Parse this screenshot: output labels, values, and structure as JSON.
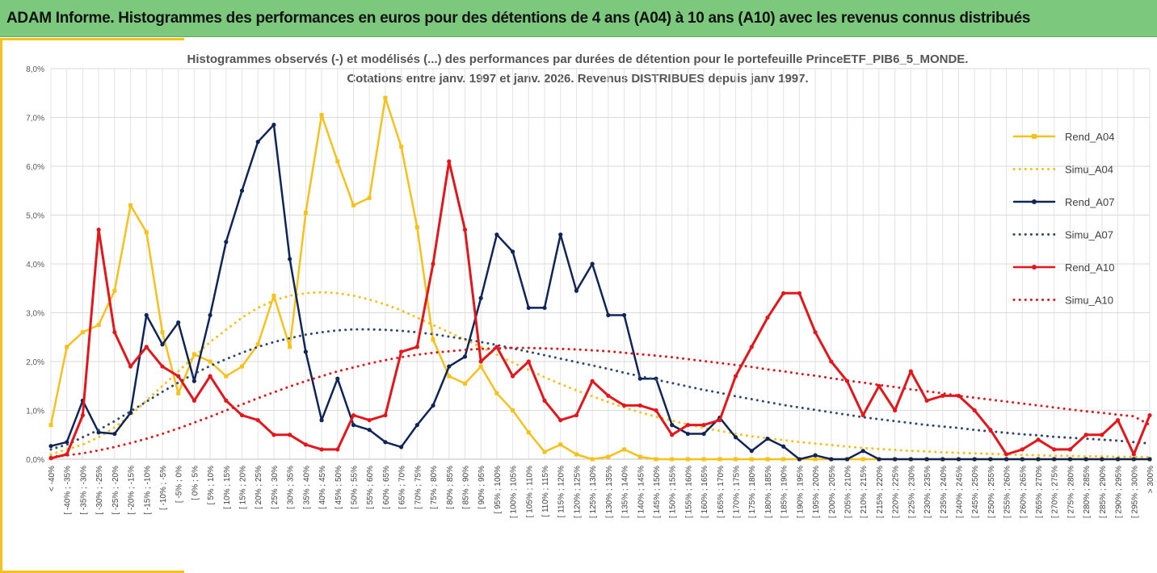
{
  "banner": {
    "title": "ADAM Informe. Histogrammes des performances en euros pour des détentions de 4 ans (A04) à 10 ans (A10) avec les revenus connus distribués"
  },
  "chart_data": {
    "type": "line",
    "title_line1": "Histogrammes observés (-) et modélisés (...) des performances par durées de détention pour  le portefeuille PrinceETF_PIB6_5_MONDE.",
    "title_line2": "Cotations  entre janv. 1997 et janv. 2026. Revenus DISTRIBUES depuis janv 1997.",
    "ylim": [
      0,
      8
    ],
    "y_ticks": [
      "0,0%",
      "1,0%",
      "2,0%",
      "3,0%",
      "4,0%",
      "5,0%",
      "6,0%",
      "7,0%",
      "8,0%"
    ],
    "grid": true,
    "legend_position": "right",
    "categories": [
      "< -40%",
      "[ -40% ; -35%",
      "[ -35% ; -30%",
      "[ -30% ; -25%",
      "[ -25% ; -20%",
      "[ -20% ; -15%",
      "[ -15% ; -10%",
      "[ -10% ; -5%",
      "[ -5% ; 0%",
      "[ 0% ; 5%",
      "[ 5% ; 10%",
      "[ 10% ; 15%",
      "[ 15% ; 20%",
      "[ 20% ; 25%",
      "[ 25% ; 30%",
      "[ 30% ; 35%",
      "[ 35% ; 40%",
      "[ 40% ; 45%",
      "[ 45% ; 50%",
      "[ 50% ; 55%",
      "[ 55% ; 60%",
      "[ 60% ; 65%",
      "[ 65% ; 70%",
      "[ 70% ; 75%",
      "[ 75% ; 80%",
      "[ 80% ; 85%",
      "[ 85% ; 90%",
      "[ 90% ; 95%",
      "[ 95% ; 100%",
      "[ 100% ; 105%",
      "[ 105% ; 110%",
      "[ 110% ; 115%",
      "[ 115% ; 120%",
      "[ 120% ; 125%",
      "[ 125% ; 130%",
      "[ 130% ; 135%",
      "[ 135% ; 140%",
      "[ 140% ; 145%",
      "[ 145% ; 150%",
      "[ 150% ; 155%",
      "[ 155% ; 160%",
      "[ 160% ; 165%",
      "[ 165% ; 170%",
      "[ 170% ; 175%",
      "[ 175% ; 180%",
      "[ 180% ; 185%",
      "[ 185% ; 190%",
      "[ 190% ; 195%",
      "[ 195% ; 200%",
      "[ 200% ; 205%",
      "[ 205% ; 210%",
      "[ 210% ; 215%",
      "[ 215% ; 220%",
      "[ 220% ; 225%",
      "[ 225% ; 230%",
      "[ 230% ; 235%",
      "[ 235% ; 240%",
      "[ 240% ; 245%",
      "[ 245% ; 250%",
      "[ 250% ; 255%",
      "[ 255% ; 260%",
      "[ 260% ; 265%",
      "[ 265% ; 270%",
      "[ 270% ; 275%",
      "[ 275% ; 280%",
      "[ 280% ; 285%",
      "[ 285% ; 290%",
      "[ 290% ; 295%",
      "[ 295% ; 300%",
      "> 300%"
    ],
    "series": [
      {
        "name": "Rend_A04",
        "style": "solid",
        "marker": "square",
        "color": "#f5c11a",
        "values": [
          0.7,
          2.3,
          2.6,
          2.75,
          3.45,
          5.2,
          4.65,
          2.6,
          1.35,
          2.15,
          2.0,
          1.7,
          1.9,
          2.35,
          3.35,
          2.3,
          5.05,
          7.05,
          6.1,
          5.2,
          5.35,
          7.4,
          6.4,
          4.75,
          2.45,
          1.7,
          1.55,
          1.9,
          1.35,
          1.0,
          0.55,
          0.15,
          0.3,
          0.1,
          0.0,
          0.05,
          0.2,
          0.05,
          0,
          0,
          0,
          0,
          0,
          0,
          0,
          0,
          0,
          0,
          0,
          0,
          0,
          0,
          0,
          0,
          0,
          0,
          0,
          0,
          0,
          0,
          0,
          0,
          0,
          0,
          0,
          0,
          0,
          0,
          0,
          0
        ]
      },
      {
        "name": "Simu_A04",
        "style": "dotted",
        "color": "#f5c11a",
        "values": [
          0.1,
          0.2,
          0.3,
          0.45,
          0.65,
          0.9,
          1.2,
          1.5,
          1.8,
          2.1,
          2.4,
          2.65,
          2.9,
          3.1,
          3.25,
          3.35,
          3.4,
          3.42,
          3.4,
          3.35,
          3.27,
          3.17,
          3.05,
          2.9,
          2.75,
          2.6,
          2.45,
          2.3,
          2.14,
          1.98,
          1.83,
          1.68,
          1.54,
          1.41,
          1.29,
          1.17,
          1.06,
          0.96,
          0.87,
          0.79,
          0.71,
          0.64,
          0.58,
          0.52,
          0.47,
          0.43,
          0.39,
          0.35,
          0.32,
          0.29,
          0.26,
          0.23,
          0.21,
          0.19,
          0.17,
          0.16,
          0.14,
          0.13,
          0.12,
          0.11,
          0.1,
          0.09,
          0.08,
          0.07,
          0.07,
          0.06,
          0.06,
          0.05,
          0.05,
          0.04
        ]
      },
      {
        "name": "Rend_A07",
        "style": "solid",
        "marker": "circle",
        "color": "#0f2557",
        "values": [
          0.27,
          0.35,
          1.2,
          0.55,
          0.52,
          0.95,
          2.95,
          2.35,
          2.8,
          1.6,
          2.95,
          4.45,
          5.5,
          6.5,
          6.85,
          4.1,
          2.2,
          0.8,
          1.65,
          0.7,
          0.6,
          0.35,
          0.25,
          0.7,
          1.1,
          1.9,
          2.1,
          3.3,
          4.6,
          4.25,
          3.1,
          3.1,
          4.6,
          3.45,
          4.0,
          2.95,
          2.95,
          1.65,
          1.65,
          0.7,
          0.52,
          0.52,
          0.85,
          0.45,
          0.17,
          0.42,
          0.26,
          0.0,
          0.08,
          0.0,
          0.0,
          0.17,
          0,
          0,
          0,
          0,
          0,
          0,
          0,
          0,
          0,
          0,
          0,
          0,
          0,
          0,
          0,
          0,
          0,
          0
        ]
      },
      {
        "name": "Simu_A07",
        "style": "dotted",
        "color": "#2e4a6e",
        "values": [
          0.2,
          0.3,
          0.45,
          0.6,
          0.78,
          0.98,
          1.18,
          1.38,
          1.57,
          1.75,
          1.91,
          2.05,
          2.18,
          2.3,
          2.4,
          2.48,
          2.55,
          2.6,
          2.64,
          2.66,
          2.66,
          2.65,
          2.63,
          2.6,
          2.56,
          2.51,
          2.46,
          2.4,
          2.34,
          2.27,
          2.2,
          2.13,
          2.06,
          1.99,
          1.92,
          1.85,
          1.77,
          1.7,
          1.63,
          1.56,
          1.49,
          1.42,
          1.36,
          1.29,
          1.23,
          1.17,
          1.11,
          1.06,
          1.01,
          0.96,
          0.91,
          0.86,
          0.82,
          0.78,
          0.74,
          0.7,
          0.67,
          0.64,
          0.6,
          0.57,
          0.54,
          0.51,
          0.49,
          0.46,
          0.44,
          0.42,
          0.4,
          0.38,
          0.35,
          0.32
        ]
      },
      {
        "name": "Rend_A10",
        "style": "solid",
        "marker": "circle",
        "color": "#e3161c",
        "values": [
          0.02,
          0.1,
          0.9,
          4.7,
          2.6,
          1.9,
          2.3,
          1.9,
          1.7,
          1.2,
          1.7,
          1.2,
          0.9,
          0.8,
          0.5,
          0.5,
          0.3,
          0.2,
          0.2,
          0.9,
          0.8,
          0.9,
          2.2,
          2.3,
          4.0,
          6.1,
          4.7,
          2.0,
          2.3,
          1.7,
          2.0,
          1.2,
          0.8,
          0.9,
          1.6,
          1.3,
          1.1,
          1.1,
          1.0,
          0.5,
          0.7,
          0.7,
          0.8,
          1.7,
          2.3,
          2.9,
          3.4,
          3.4,
          2.6,
          2.0,
          1.6,
          0.9,
          1.5,
          1.0,
          1.8,
          1.2,
          1.3,
          1.3,
          1.0,
          0.6,
          0.1,
          0.2,
          0.4,
          0.2,
          0.2,
          0.5,
          0.5,
          0.8,
          0.1,
          0.9
        ]
      },
      {
        "name": "Simu_A10",
        "style": "dotted",
        "color": "#e3161c",
        "values": [
          0.05,
          0.08,
          0.12,
          0.18,
          0.25,
          0.33,
          0.42,
          0.52,
          0.63,
          0.75,
          0.87,
          1.0,
          1.12,
          1.25,
          1.37,
          1.49,
          1.6,
          1.7,
          1.8,
          1.88,
          1.96,
          2.03,
          2.09,
          2.14,
          2.18,
          2.21,
          2.24,
          2.26,
          2.27,
          2.28,
          2.28,
          2.27,
          2.26,
          2.25,
          2.23,
          2.21,
          2.18,
          2.15,
          2.12,
          2.09,
          2.05,
          2.01,
          1.97,
          1.93,
          1.89,
          1.84,
          1.8,
          1.75,
          1.71,
          1.66,
          1.61,
          1.57,
          1.52,
          1.48,
          1.43,
          1.39,
          1.35,
          1.3,
          1.26,
          1.22,
          1.18,
          1.14,
          1.1,
          1.06,
          1.02,
          0.98,
          0.95,
          0.91,
          0.88,
          0.7
        ]
      }
    ]
  }
}
